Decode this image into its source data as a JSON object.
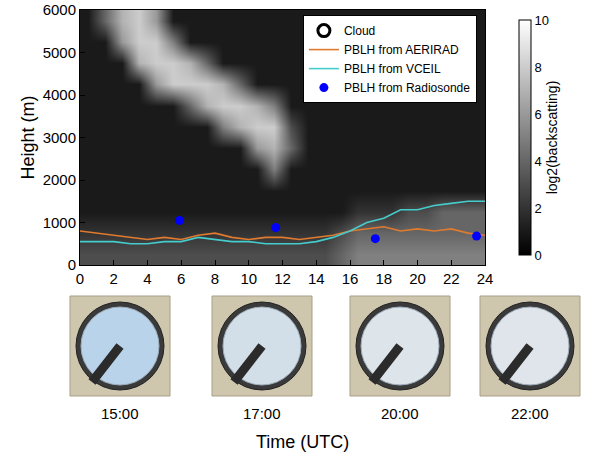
{
  "chart_data": {
    "type": "heatmap",
    "x_label": "Time (UTC)",
    "y_label": "Height (m)",
    "xlim": [
      0,
      24
    ],
    "xticks": [
      0,
      2,
      4,
      6,
      8,
      10,
      12,
      14,
      16,
      18,
      20,
      22,
      24
    ],
    "ylim": [
      0,
      6000
    ],
    "yticks": [
      0,
      1000,
      2000,
      3000,
      4000,
      5000,
      6000
    ],
    "legend": "top right",
    "heatmap": {
      "name": "Cloud",
      "x": [
        0.5,
        1.5,
        2.5,
        3.5,
        4.5,
        5.5,
        6.5,
        7.5,
        8.5,
        9.5,
        10.5,
        11.5,
        12.5,
        13.5,
        14.5,
        15.5,
        16.5,
        17.5,
        18.5,
        19.5,
        20.5,
        21.5,
        22.5,
        23.5
      ],
      "y": [
        250,
        750,
        1250,
        1750,
        2250,
        2750,
        3250,
        3750,
        4250,
        4750,
        5250,
        5750
      ],
      "z": [
        [
          3,
          3,
          3,
          3,
          3,
          3,
          3,
          3,
          3,
          3,
          3,
          3,
          3,
          3,
          3,
          4,
          5,
          5,
          5,
          5,
          5,
          5,
          5,
          5
        ],
        [
          2,
          2,
          2,
          2,
          2,
          2,
          2,
          2,
          2,
          2,
          2,
          2,
          2,
          2,
          2,
          3,
          4,
          4,
          4,
          4,
          4,
          4,
          4,
          4
        ],
        [
          1,
          1,
          1,
          1,
          1,
          1,
          1,
          1,
          1,
          1,
          1,
          1,
          1,
          1,
          1,
          1,
          2,
          2,
          2,
          3,
          3,
          4,
          4,
          4
        ],
        [
          1,
          1,
          1,
          1,
          1,
          1,
          1,
          1,
          1,
          1,
          1,
          1,
          1,
          1,
          1,
          1,
          1,
          1,
          1,
          1,
          1,
          1,
          1,
          1
        ],
        [
          1,
          1,
          1,
          1,
          1,
          1,
          1,
          1,
          1,
          1,
          1,
          5,
          1,
          1,
          1,
          1,
          1,
          1,
          1,
          1,
          1,
          1,
          1,
          1
        ],
        [
          1,
          1,
          1,
          1,
          1,
          1,
          1,
          1,
          1,
          1,
          6,
          7,
          4,
          1,
          1,
          1,
          1,
          1,
          1,
          1,
          1,
          1,
          1,
          1
        ],
        [
          1,
          1,
          1,
          1,
          1,
          1,
          1,
          1,
          5,
          7,
          8,
          8,
          3,
          1,
          1,
          1,
          1,
          1,
          1,
          1,
          1,
          1,
          1,
          1
        ],
        [
          1,
          1,
          1,
          1,
          1,
          1,
          4,
          7,
          8,
          8,
          7,
          5,
          1,
          1,
          1,
          1,
          1,
          1,
          1,
          1,
          1,
          1,
          1,
          1
        ],
        [
          1,
          1,
          1,
          1,
          6,
          8,
          8,
          8,
          7,
          4,
          1,
          1,
          1,
          1,
          1,
          1,
          1,
          1,
          1,
          1,
          1,
          1,
          1,
          1
        ],
        [
          1,
          1,
          1,
          7,
          8,
          8,
          7,
          4,
          1,
          1,
          1,
          1,
          1,
          1,
          1,
          1,
          1,
          1,
          1,
          1,
          1,
          1,
          1,
          1
        ],
        [
          1,
          1,
          6,
          8,
          8,
          5,
          1,
          1,
          1,
          1,
          1,
          1,
          1,
          1,
          1,
          1,
          1,
          1,
          1,
          1,
          1,
          1,
          1,
          1
        ],
        [
          1,
          4,
          7,
          8,
          6,
          1,
          1,
          1,
          1,
          1,
          1,
          1,
          1,
          1,
          1,
          1,
          1,
          1,
          1,
          1,
          1,
          1,
          1,
          1
        ]
      ],
      "colorbar_title": "log2(backscatting)",
      "colorbar_range": [
        0,
        10
      ],
      "colorbar_ticks": [
        0,
        2,
        4,
        6,
        8,
        10
      ]
    },
    "series": [
      {
        "name": "PBLH from AERIRAD",
        "type": "line",
        "color": "#e07a2f",
        "x": [
          0,
          1,
          2,
          3,
          4,
          5,
          6,
          7,
          8,
          9,
          10,
          11,
          12,
          13,
          14,
          15,
          16,
          17,
          18,
          19,
          20,
          21,
          22,
          23,
          24
        ],
        "values": [
          800,
          750,
          700,
          650,
          600,
          650,
          600,
          700,
          750,
          650,
          600,
          650,
          650,
          600,
          650,
          700,
          800,
          850,
          900,
          800,
          850,
          800,
          850,
          750,
          700
        ]
      },
      {
        "name": "PBLH from VCEIL",
        "type": "line",
        "color": "#45cccc",
        "x": [
          0,
          1,
          2,
          3,
          4,
          5,
          6,
          7,
          8,
          9,
          10,
          11,
          12,
          13,
          14,
          15,
          16,
          17,
          18,
          19,
          20,
          21,
          22,
          23,
          24
        ],
        "values": [
          550,
          550,
          550,
          500,
          500,
          550,
          550,
          650,
          600,
          550,
          550,
          500,
          500,
          500,
          550,
          650,
          800,
          1000,
          1100,
          1300,
          1300,
          1400,
          1450,
          1500,
          1500
        ]
      },
      {
        "name": "PBLH from Radiosonde",
        "type": "scatter",
        "marker": "circle",
        "color": "#0000ff",
        "x": [
          5.9,
          11.6,
          17.5,
          23.5
        ],
        "values": [
          1050,
          880,
          620,
          680
        ]
      }
    ],
    "photo_labels": [
      "15:00",
      "17:00",
      "20:00",
      "22:00"
    ]
  }
}
